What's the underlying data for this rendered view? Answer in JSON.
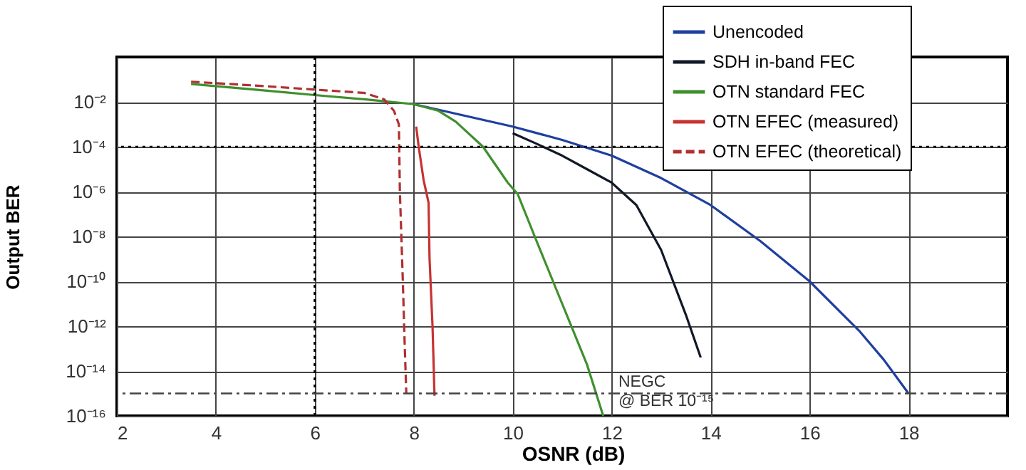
{
  "chart_data": {
    "type": "line",
    "xlabel": "OSNR (dB)",
    "ylabel": "Output BER",
    "log": "y",
    "xlim": [
      2,
      20
    ],
    "xticks": [
      2,
      4,
      6,
      8,
      10,
      12,
      14,
      16,
      18
    ],
    "ylim": [
      1e-16,
      1
    ],
    "yticks": [
      {
        "value": 0.01,
        "label": "10⁻²"
      },
      {
        "value": 0.0001,
        "label": "10⁻⁴"
      },
      {
        "value": 1e-06,
        "label": "10⁻⁶"
      },
      {
        "value": 1e-08,
        "label": "10⁻⁸"
      },
      {
        "value": 1e-10,
        "label": "10⁻¹⁰"
      },
      {
        "value": 1e-12,
        "label": "10⁻¹²"
      },
      {
        "value": 1e-14,
        "label": "10⁻¹⁴"
      },
      {
        "value": 1e-16,
        "label": "10⁻¹⁶"
      }
    ],
    "grid": true,
    "legend": "top right",
    "series": [
      {
        "name": "Unencoded",
        "color": "#1f3f9f",
        "line_style": "solid",
        "x": [
          8,
          9,
          10,
          11,
          12,
          13,
          14,
          15,
          16,
          17,
          17.5,
          18
        ],
        "values": [
          0.0079,
          0.0025,
          0.00079,
          0.0002,
          4e-05,
          4e-06,
          2.5e-07,
          6.3e-09,
          1e-10,
          6.3e-13,
          3.2e-14,
          1e-15
        ]
      },
      {
        "name": "SDH in-band FEC",
        "color": "#111827",
        "line_style": "solid",
        "x": [
          10,
          10.5,
          11,
          11.5,
          12,
          12.5,
          13,
          13.5,
          13.8
        ],
        "values": [
          0.0004,
          0.00013,
          4e-05,
          1e-05,
          2.5e-06,
          2.5e-07,
          2.5e-09,
          3.2e-12,
          4e-14
        ]
      },
      {
        "name": "OTN standard FEC",
        "color": "#3f8f2f",
        "line_style": "solid",
        "x": [
          3.5,
          5,
          6,
          7,
          8,
          8.5,
          8.85,
          9.4,
          9.9,
          10.1,
          10.5,
          11,
          11.5,
          11.83
        ],
        "values": [
          0.063,
          0.032,
          0.02,
          0.013,
          0.0079,
          0.004,
          0.0013,
          0.0001,
          2.5e-06,
          7.9e-07,
          5e-09,
          1e-11,
          2e-14,
          1e-16
        ]
      },
      {
        "name": "OTN EFEC (measured)",
        "color": "#c83232",
        "line_style": "solid",
        "x": [
          8.05,
          8.1,
          8.2,
          8.3,
          8.32,
          8.38,
          8.42
        ],
        "values": [
          0.00079,
          0.0001,
          3.2e-06,
          3.2e-07,
          1e-09,
          1e-12,
          7.9e-16
        ]
      },
      {
        "name": "OTN EFEC (theoretical)",
        "color": "#b03030",
        "line_style": "dashed",
        "x": [
          3.5,
          5,
          6,
          7,
          7.4,
          7.6,
          7.7,
          7.72,
          7.78,
          7.82,
          7.85
        ],
        "values": [
          0.079,
          0.05,
          0.035,
          0.025,
          0.013,
          0.004,
          0.001,
          1e-06,
          1e-10,
          1e-13,
          1e-15
        ]
      }
    ],
    "ref_lines": [
      {
        "axis": "x",
        "value": 6,
        "color": "#000000",
        "line_style": "dotted"
      },
      {
        "axis": "y",
        "value": 0.0001,
        "color": "#000000",
        "line_style": "dotted"
      },
      {
        "axis": "y",
        "value": 1e-15,
        "color": "#444444",
        "line_style": "dashed",
        "label": "NEGC\n@ BER 10⁻¹⁵"
      }
    ]
  }
}
